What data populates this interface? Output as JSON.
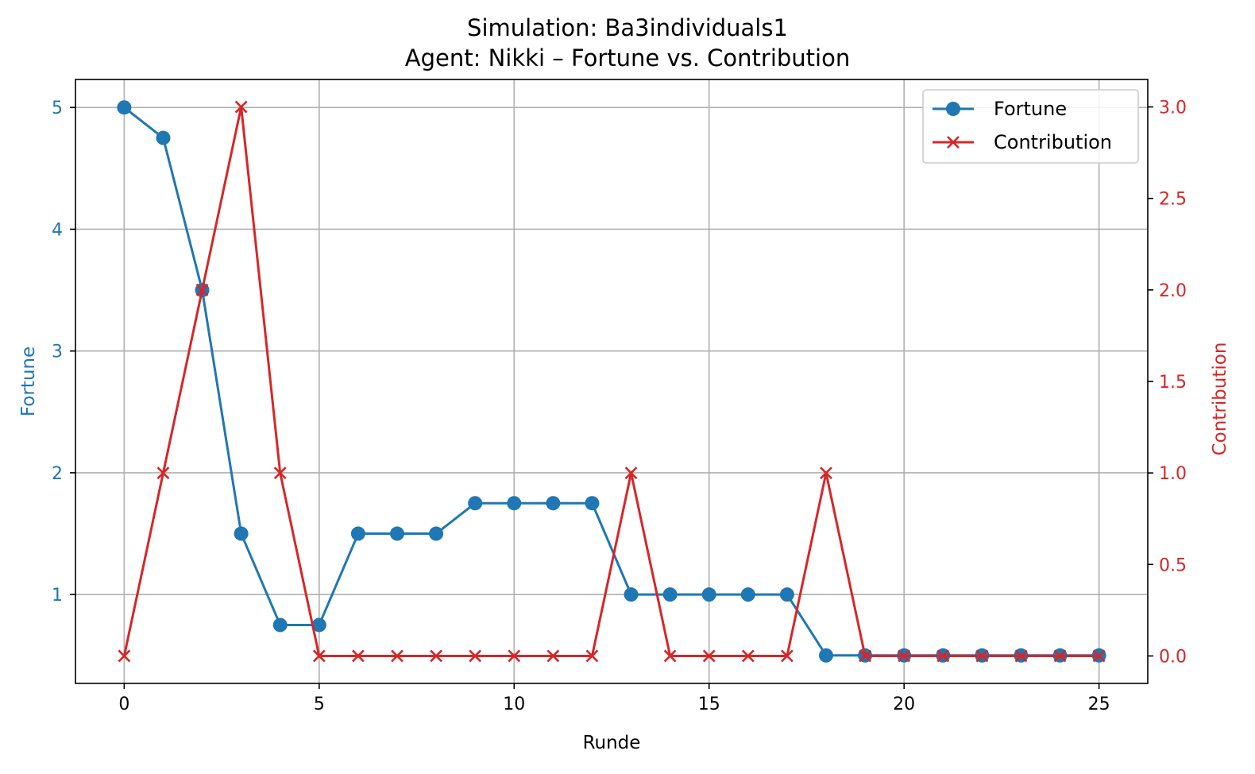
{
  "chart_data": {
    "type": "line",
    "title": "Simulation: Ba3individuals1",
    "subtitle": "Agent: Nikki – Fortune vs. Contribution",
    "xlabel": "Runde",
    "ylabel_left": "Fortune",
    "ylabel_right": "Contribution",
    "x": [
      0,
      1,
      2,
      3,
      4,
      5,
      6,
      7,
      8,
      9,
      10,
      11,
      12,
      13,
      14,
      15,
      16,
      17,
      18,
      19,
      20,
      21,
      22,
      23,
      24,
      25
    ],
    "xlim": [
      -1.25,
      26.25
    ],
    "xticks": [
      0,
      5,
      10,
      15,
      20,
      25
    ],
    "ylim_left": [
      0.27,
      5.23
    ],
    "yticks_left": [
      1,
      2,
      3,
      4,
      5
    ],
    "ylim_right": [
      -0.15,
      3.15
    ],
    "yticks_right": [
      "0.0",
      "0.5",
      "1.0",
      "1.5",
      "2.0",
      "2.5",
      "3.0"
    ],
    "grid": true,
    "legend_position": "top-right",
    "series": [
      {
        "name": "Fortune",
        "axis": "left",
        "color": "#1f77b4",
        "marker": "circle",
        "values": [
          5,
          4.75,
          3.5,
          1.5,
          0.75,
          0.75,
          1.5,
          1.5,
          1.5,
          1.75,
          1.75,
          1.75,
          1.75,
          1,
          1,
          1,
          1,
          1,
          0.5,
          0.5,
          0.5,
          0.5,
          0.5,
          0.5,
          0.5,
          0.5
        ]
      },
      {
        "name": "Contribution",
        "axis": "right",
        "color": "#d62728",
        "marker": "x",
        "values": [
          0,
          1,
          2,
          3,
          1,
          0,
          0,
          0,
          0,
          0,
          0,
          0,
          0,
          1,
          0,
          0,
          0,
          0,
          1,
          0,
          0,
          0,
          0,
          0,
          0,
          0
        ]
      }
    ]
  }
}
